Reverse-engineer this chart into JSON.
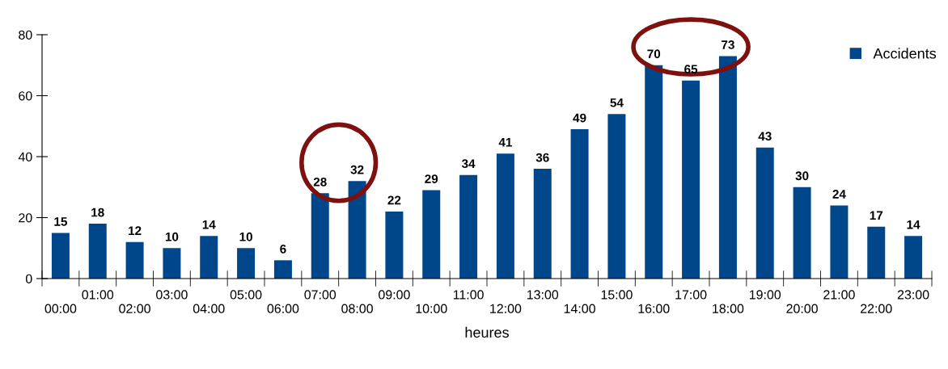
{
  "chart_data": {
    "type": "bar",
    "xlabel": "heures",
    "categories": [
      "00:00",
      "01:00",
      "02:00",
      "03:00",
      "04:00",
      "05:00",
      "06:00",
      "07:00",
      "08:00",
      "09:00",
      "10:00",
      "11:00",
      "12:00",
      "13:00",
      "14:00",
      "15:00",
      "16:00",
      "17:00",
      "18:00",
      "19:00",
      "20:00",
      "21:00",
      "22:00",
      "23:00"
    ],
    "series": [
      {
        "name": "Accidents",
        "color": "#00468b",
        "values": [
          15,
          18,
          12,
          10,
          14,
          10,
          6,
          28,
          32,
          22,
          29,
          34,
          41,
          36,
          49,
          54,
          70,
          65,
          73,
          43,
          30,
          24,
          17,
          14
        ]
      }
    ],
    "ylim": [
      0,
      80
    ],
    "yticks": [
      0,
      20,
      40,
      60,
      80
    ],
    "grid": false,
    "legend": "top right",
    "data_labels": true
  }
}
